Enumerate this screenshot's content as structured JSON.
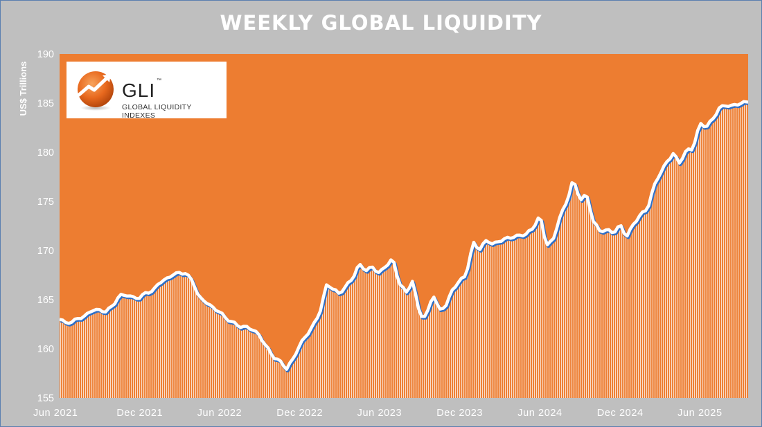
{
  "colors": {
    "background": "#bfbfbf",
    "plot_area": "#ed7d31",
    "line": "#ffffff",
    "line_shadow": "#2e6fc7",
    "hatch": "#ffffff",
    "logo_orange": "#e8691e"
  },
  "logo": {
    "name": "GLI",
    "trademark": "™",
    "tagline": "GLOBAL LIQUIDITY INDEXES",
    "icon": "rising-arrow-sphere-icon"
  },
  "chart_data": {
    "type": "area",
    "title": "WEEKLY GLOBAL LIQUIDITY",
    "xlabel": "",
    "ylabel": "US$ Trillions",
    "ylim": [
      155,
      190
    ],
    "yticks": [
      155,
      160,
      165,
      170,
      175,
      180,
      185,
      190
    ],
    "x_tick_labels": [
      "Jun 2021",
      "Dec 2021",
      "Jun 2022",
      "Dec 2022",
      "Jun 2023",
      "Dec 2023",
      "Jun 2024",
      "Dec 2024",
      "Jun 2025"
    ],
    "x_tick_dates": [
      "2021-06-01",
      "2021-12-01",
      "2022-06-01",
      "2022-12-01",
      "2023-06-01",
      "2023-12-01",
      "2024-06-01",
      "2024-12-01",
      "2025-06-01"
    ],
    "x_range": [
      "2021-06-01",
      "2025-09-19"
    ],
    "grid": false,
    "legend": "none",
    "series": [
      {
        "frequency": "weekly",
        "points": [
          [
            "2021-06-01",
            163.1
          ],
          [
            "2021-06-15",
            162.6
          ],
          [
            "2021-07-01",
            162.8
          ],
          [
            "2021-07-15",
            163.1
          ],
          [
            "2021-08-01",
            163.4
          ],
          [
            "2021-08-15",
            164.0
          ],
          [
            "2021-09-01",
            163.9
          ],
          [
            "2021-09-15",
            163.8
          ],
          [
            "2021-10-01",
            164.4
          ],
          [
            "2021-10-15",
            165.4
          ],
          [
            "2021-11-01",
            165.5
          ],
          [
            "2021-11-15",
            165.2
          ],
          [
            "2021-12-01",
            165.2
          ],
          [
            "2021-12-15",
            165.7
          ],
          [
            "2022-01-01",
            165.9
          ],
          [
            "2022-01-15",
            166.8
          ],
          [
            "2022-02-01",
            167.1
          ],
          [
            "2022-02-15",
            167.6
          ],
          [
            "2022-03-01",
            167.7
          ],
          [
            "2022-03-15",
            167.7
          ],
          [
            "2022-04-01",
            166.9
          ],
          [
            "2022-04-15",
            165.2
          ],
          [
            "2022-05-01",
            164.8
          ],
          [
            "2022-05-15",
            164.2
          ],
          [
            "2022-06-01",
            163.8
          ],
          [
            "2022-06-15",
            163.1
          ],
          [
            "2022-07-01",
            162.7
          ],
          [
            "2022-07-15",
            162.3
          ],
          [
            "2022-08-01",
            162.2
          ],
          [
            "2022-08-15",
            162.0
          ],
          [
            "2022-09-01",
            161.3
          ],
          [
            "2022-09-15",
            160.3
          ],
          [
            "2022-10-01",
            159.2
          ],
          [
            "2022-10-15",
            158.8
          ],
          [
            "2022-11-01",
            158.0
          ],
          [
            "2022-11-15",
            158.9
          ],
          [
            "2022-12-01",
            160.4
          ],
          [
            "2022-12-15",
            161.3
          ],
          [
            "2023-01-01",
            162.4
          ],
          [
            "2023-01-15",
            163.6
          ],
          [
            "2023-02-01",
            166.6
          ],
          [
            "2023-02-15",
            166.1
          ],
          [
            "2023-03-01",
            165.6
          ],
          [
            "2023-03-15",
            166.3
          ],
          [
            "2023-04-01",
            167.2
          ],
          [
            "2023-04-15",
            168.6
          ],
          [
            "2023-05-01",
            168.0
          ],
          [
            "2023-05-15",
            168.3
          ],
          [
            "2023-06-01",
            167.7
          ],
          [
            "2023-06-15",
            168.4
          ],
          [
            "2023-07-01",
            169.2
          ],
          [
            "2023-07-15",
            166.8
          ],
          [
            "2023-08-01",
            165.7
          ],
          [
            "2023-08-15",
            166.9
          ],
          [
            "2023-09-01",
            163.5
          ],
          [
            "2023-09-15",
            163.2
          ],
          [
            "2023-10-01",
            165.6
          ],
          [
            "2023-10-15",
            163.9
          ],
          [
            "2023-11-01",
            164.5
          ],
          [
            "2023-11-15",
            166.1
          ],
          [
            "2023-12-01",
            166.9
          ],
          [
            "2023-12-15",
            167.5
          ],
          [
            "2024-01-01",
            170.8
          ],
          [
            "2024-01-15",
            170.1
          ],
          [
            "2024-02-01",
            171.1
          ],
          [
            "2024-02-15",
            170.6
          ],
          [
            "2024-03-01",
            171.0
          ],
          [
            "2024-03-15",
            171.2
          ],
          [
            "2024-04-01",
            171.4
          ],
          [
            "2024-04-15",
            171.5
          ],
          [
            "2024-05-01",
            171.7
          ],
          [
            "2024-05-15",
            172.2
          ],
          [
            "2024-06-01",
            173.6
          ],
          [
            "2024-06-15",
            170.6
          ],
          [
            "2024-07-01",
            171.0
          ],
          [
            "2024-07-15",
            173.3
          ],
          [
            "2024-08-01",
            174.9
          ],
          [
            "2024-08-15",
            177.2
          ],
          [
            "2024-09-01",
            175.2
          ],
          [
            "2024-09-15",
            175.7
          ],
          [
            "2024-10-01",
            173.0
          ],
          [
            "2024-10-15",
            172.0
          ],
          [
            "2024-11-01",
            172.1
          ],
          [
            "2024-11-15",
            171.8
          ],
          [
            "2024-12-01",
            172.6
          ],
          [
            "2024-12-15",
            171.4
          ],
          [
            "2025-01-01",
            172.7
          ],
          [
            "2025-01-15",
            173.6
          ],
          [
            "2025-02-01",
            174.2
          ],
          [
            "2025-02-15",
            176.4
          ],
          [
            "2025-03-01",
            177.8
          ],
          [
            "2025-03-15",
            178.8
          ],
          [
            "2025-04-01",
            179.9
          ],
          [
            "2025-04-15",
            178.9
          ],
          [
            "2025-05-01",
            180.2
          ],
          [
            "2025-05-15",
            180.3
          ],
          [
            "2025-06-01",
            182.9
          ],
          [
            "2025-06-15",
            182.6
          ],
          [
            "2025-07-01",
            183.4
          ],
          [
            "2025-07-15",
            184.5
          ],
          [
            "2025-08-01",
            184.8
          ],
          [
            "2025-08-15",
            184.7
          ],
          [
            "2025-09-01",
            185.0
          ],
          [
            "2025-09-19",
            185.1
          ]
        ]
      }
    ]
  }
}
